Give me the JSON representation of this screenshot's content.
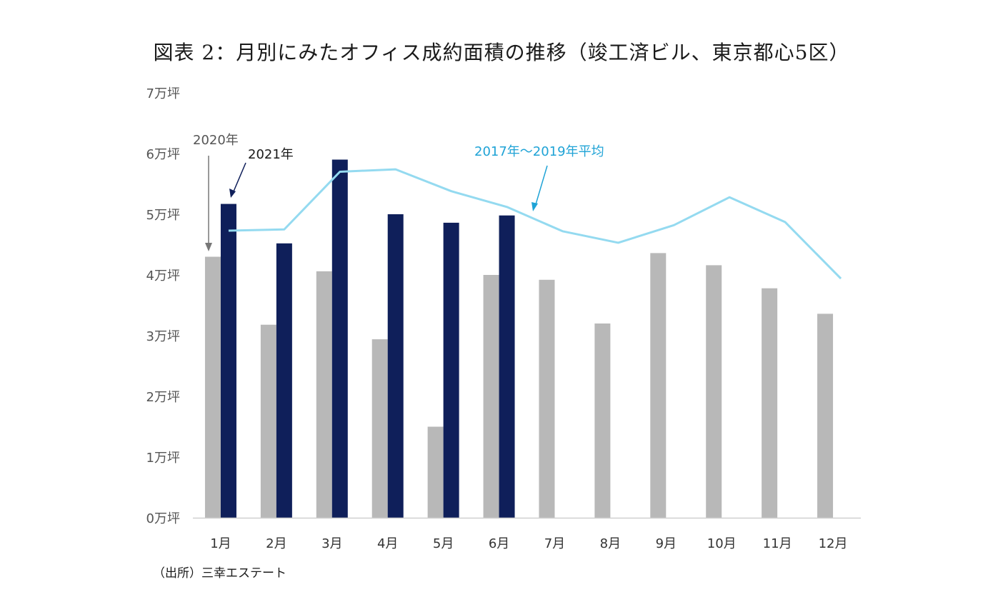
{
  "title": "図表 2：月別にみたオフィス成約面積の推移（竣工済ビル、東京都心5区）",
  "source_note": "（出所）三幸エステート",
  "colors": {
    "series_2020": "#b8b8b8",
    "series_2021": "#0f1f5a",
    "series_avg": "#94daf0",
    "avg_label": "#1fa3d6",
    "axis": "#d0d0d0",
    "text": "#555555"
  },
  "chart_data": {
    "type": "bar",
    "title": "図表 2：月別にみたオフィス成約面積の推移（竣工済ビル、東京都心5区）",
    "xlabel": "",
    "ylabel": "",
    "ylim": [
      0,
      7
    ],
    "y_unit": "万坪",
    "y_ticks": [
      "0万坪",
      "1万坪",
      "2万坪",
      "3万坪",
      "4万坪",
      "5万坪",
      "6万坪",
      "7万坪"
    ],
    "categories": [
      "1月",
      "2月",
      "3月",
      "4月",
      "5月",
      "6月",
      "7月",
      "8月",
      "9月",
      "10月",
      "11月",
      "12月"
    ],
    "series": [
      {
        "name": "2020年",
        "type": "bar",
        "values": [
          4.3,
          3.18,
          4.06,
          2.94,
          1.5,
          4.0,
          3.92,
          3.2,
          4.36,
          4.16,
          3.78,
          3.36
        ]
      },
      {
        "name": "2021年",
        "type": "bar",
        "values": [
          5.17,
          4.52,
          5.9,
          5.0,
          4.86,
          4.98,
          null,
          null,
          null,
          null,
          null,
          null
        ]
      },
      {
        "name": "2017年～2019年平均",
        "type": "line",
        "values": [
          4.73,
          4.75,
          5.7,
          5.74,
          5.38,
          5.12,
          4.72,
          4.53,
          4.82,
          5.28,
          4.87,
          3.94
        ]
      }
    ],
    "annotations": {
      "label_2020": "2020年",
      "label_2021": "2021年",
      "label_avg": "2017年～2019年平均"
    }
  }
}
